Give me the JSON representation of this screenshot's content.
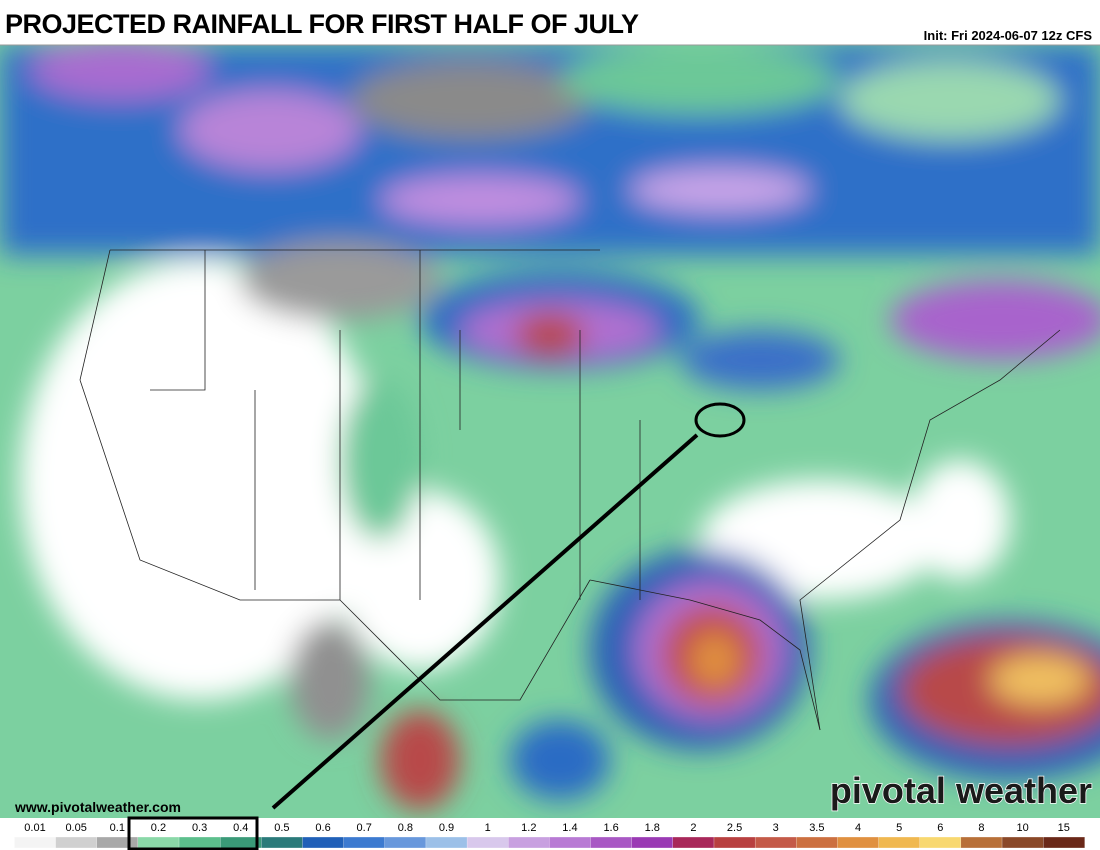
{
  "header": {
    "title": "PROJECTED RAINFALL FOR FIRST HALF OF JULY",
    "init": "Init: Fri 2024-06-07 12z CFS"
  },
  "footer": {
    "website": "www.pivotalweather.com",
    "watermark": "pivotal weather"
  },
  "legend": {
    "labels": [
      "0.01",
      "0.05",
      "0.1",
      "0.2",
      "0.3",
      "0.4",
      "0.5",
      "0.6",
      "0.7",
      "0.8",
      "0.9",
      "1",
      "1.2",
      "1.4",
      "1.6",
      "1.8",
      "2",
      "2.5",
      "3",
      "3.5",
      "4",
      "5",
      "6",
      "8",
      "10",
      "15"
    ],
    "colors": [
      "#f4f4f4",
      "#d0d0d0",
      "#a8a8a8",
      "#8ad8a8",
      "#5cbf8c",
      "#3a9a78",
      "#2a7a7a",
      "#2060b8",
      "#3c7ad0",
      "#6898dc",
      "#9cc0e8",
      "#d8c8ec",
      "#c8a0e0",
      "#b87ad4",
      "#a858c4",
      "#9a3ab4",
      "#a8285a",
      "#b84040",
      "#c45a48",
      "#cc7040",
      "#e09040",
      "#f0b850",
      "#f8d870",
      "#b87038",
      "#8a4828",
      "#6a2818"
    ]
  }
}
